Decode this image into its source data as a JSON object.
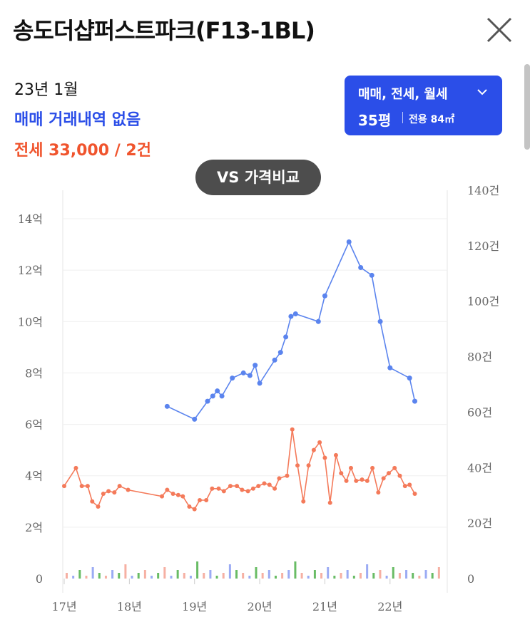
{
  "header": {
    "title": "송도더샵퍼스트파크(F13-1BL)"
  },
  "summary": {
    "period": "23년 1월",
    "trade": "매매 거래내역 없음",
    "jeonse": "전세 33,000 / 2건"
  },
  "selector": {
    "types": "매매, 전세, 월세",
    "size": "35평",
    "area": "전용 84㎡"
  },
  "vs_button": "VS 가격비교",
  "colors": {
    "accent": "#2b4ee8",
    "trade": "#5b84ee",
    "jeonse": "#f47a5a",
    "monthly": "#3aa336",
    "button": "#4d4d4d"
  },
  "icons": {
    "close": "close-icon",
    "dropdown": "chevron-down-icon"
  },
  "chart_data": {
    "type": "line",
    "x_unit": "year",
    "xlim": [
      2017,
      2022.9
    ],
    "x_ticks": [
      "17년",
      "18년",
      "19년",
      "20년",
      "21년",
      "22년"
    ],
    "y_left": {
      "ylim": [
        0,
        14
      ],
      "ticks": [
        "0",
        "2억",
        "4억",
        "6억",
        "8억",
        "10억",
        "12억",
        "14억"
      ]
    },
    "y_right": {
      "ylim": [
        0,
        140
      ],
      "ticks": [
        "0",
        "20건",
        "40건",
        "60건",
        "80건",
        "100건",
        "120건",
        "140건"
      ]
    },
    "grid": true,
    "series": [
      {
        "color": "#5b84ee",
        "axis": "left",
        "x": [
          2018.58,
          2019.0,
          2019.2,
          2019.28,
          2019.35,
          2019.42,
          2019.58,
          2019.75,
          2019.85,
          2019.93,
          2020.0,
          2020.23,
          2020.32,
          2020.4,
          2020.48,
          2020.55,
          2020.9,
          2021.0,
          2021.37,
          2021.55,
          2021.72,
          2021.85,
          2022.0,
          2022.3,
          2022.38
        ],
        "y": [
          6.7,
          6.2,
          6.9,
          7.1,
          7.3,
          7.1,
          7.8,
          8.0,
          7.9,
          8.3,
          7.6,
          8.5,
          8.8,
          9.4,
          10.2,
          10.3,
          10.0,
          11.0,
          13.1,
          12.1,
          11.8,
          10.0,
          8.2,
          7.8,
          6.9
        ]
      },
      {
        "color": "#f47a5a",
        "axis": "left",
        "x": [
          2017.0,
          2017.18,
          2017.27,
          2017.36,
          2017.43,
          2017.52,
          2017.6,
          2017.68,
          2017.77,
          2017.85,
          2017.98,
          2018.5,
          2018.58,
          2018.67,
          2018.75,
          2018.82,
          2018.92,
          2019.0,
          2019.08,
          2019.18,
          2019.27,
          2019.37,
          2019.45,
          2019.55,
          2019.65,
          2019.73,
          2019.82,
          2019.9,
          2019.98,
          2020.07,
          2020.15,
          2020.23,
          2020.3,
          2020.42,
          2020.5,
          2020.58,
          2020.67,
          2020.75,
          2020.83,
          2020.92,
          2021.0,
          2021.08,
          2021.17,
          2021.25,
          2021.33,
          2021.4,
          2021.48,
          2021.57,
          2021.65,
          2021.73,
          2021.82,
          2021.9,
          2021.98,
          2022.07,
          2022.15,
          2022.23,
          2022.3,
          2022.38
        ],
        "y": [
          3.6,
          4.3,
          3.6,
          3.6,
          3.0,
          2.8,
          3.3,
          3.4,
          3.35,
          3.6,
          3.45,
          3.2,
          3.45,
          3.3,
          3.25,
          3.2,
          2.8,
          2.7,
          3.05,
          3.05,
          3.5,
          3.5,
          3.4,
          3.6,
          3.6,
          3.45,
          3.4,
          3.5,
          3.6,
          3.7,
          3.65,
          3.5,
          3.9,
          4.0,
          5.8,
          4.4,
          3.0,
          4.4,
          5.0,
          5.3,
          4.7,
          2.95,
          4.8,
          4.1,
          3.8,
          4.3,
          3.8,
          3.85,
          3.8,
          4.3,
          3.35,
          3.9,
          4.1,
          4.3,
          4.0,
          3.6,
          3.65,
          3.3
        ]
      }
    ]
  }
}
